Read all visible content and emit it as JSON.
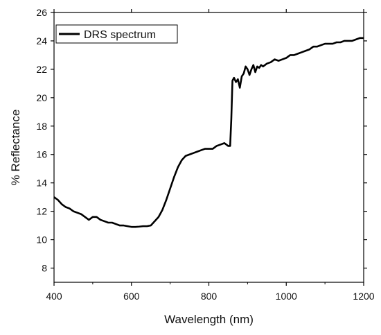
{
  "chart_data": {
    "type": "line",
    "title": "",
    "xlabel": "Wavelength (nm)",
    "ylabel": "% Reflectance",
    "xlim": [
      400,
      1200
    ],
    "ylim": [
      7,
      26
    ],
    "xticks": [
      400,
      600,
      800,
      1000,
      1200
    ],
    "yticks": [
      8,
      10,
      12,
      14,
      16,
      18,
      20,
      22,
      24,
      26
    ],
    "grid": false,
    "legend_position": "top-left",
    "colors": {
      "line": "#000000",
      "axis": "#000000"
    },
    "series": [
      {
        "name": "DRS spectrum",
        "x": [
          400,
          410,
          420,
          430,
          440,
          450,
          460,
          470,
          480,
          490,
          500,
          510,
          520,
          530,
          540,
          550,
          560,
          570,
          580,
          590,
          600,
          610,
          620,
          630,
          640,
          650,
          660,
          670,
          680,
          690,
          700,
          710,
          720,
          730,
          740,
          750,
          760,
          770,
          780,
          790,
          800,
          810,
          820,
          830,
          840,
          850,
          855,
          858,
          861,
          865,
          870,
          875,
          880,
          885,
          890,
          895,
          900,
          905,
          910,
          915,
          920,
          925,
          930,
          935,
          940,
          950,
          960,
          970,
          980,
          990,
          1000,
          1010,
          1020,
          1030,
          1040,
          1050,
          1060,
          1070,
          1080,
          1090,
          1100,
          1110,
          1120,
          1130,
          1140,
          1150,
          1160,
          1170,
          1180,
          1190,
          1200
        ],
        "y": [
          13.0,
          12.8,
          12.5,
          12.3,
          12.2,
          12.0,
          11.9,
          11.8,
          11.6,
          11.4,
          11.6,
          11.6,
          11.4,
          11.3,
          11.2,
          11.2,
          11.1,
          11.0,
          11.0,
          10.95,
          10.9,
          10.9,
          10.92,
          10.95,
          10.95,
          11.0,
          11.3,
          11.6,
          12.1,
          12.8,
          13.6,
          14.4,
          15.1,
          15.6,
          15.9,
          16.0,
          16.1,
          16.2,
          16.3,
          16.4,
          16.4,
          16.4,
          16.6,
          16.7,
          16.8,
          16.6,
          16.6,
          18.5,
          21.2,
          21.4,
          21.1,
          21.3,
          20.7,
          21.5,
          21.7,
          22.2,
          22.0,
          21.6,
          22.0,
          22.3,
          21.8,
          22.2,
          22.1,
          22.3,
          22.2,
          22.4,
          22.5,
          22.7,
          22.6,
          22.7,
          22.8,
          23.0,
          23.0,
          23.1,
          23.2,
          23.3,
          23.4,
          23.6,
          23.6,
          23.7,
          23.8,
          23.8,
          23.8,
          23.9,
          23.9,
          24.0,
          24.0,
          24.0,
          24.1,
          24.2,
          24.2
        ]
      }
    ]
  }
}
